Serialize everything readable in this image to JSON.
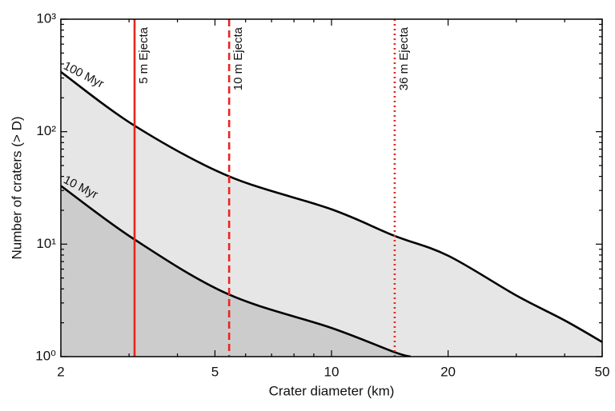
{
  "chart_data": {
    "type": "line",
    "xlabel": "Crater diameter (km)",
    "ylabel": "Number of craters (> D)",
    "xscale": "log",
    "yscale": "log",
    "xlim": [
      2,
      50
    ],
    "ylim": [
      1,
      1000
    ],
    "xticks": [
      2,
      5,
      10,
      20,
      50
    ],
    "xminorticks": [
      3,
      4,
      6,
      7,
      8,
      9,
      30,
      40
    ],
    "yticks": [
      {
        "value": 1,
        "label": "10⁰"
      },
      {
        "value": 10,
        "label": "10¹"
      },
      {
        "value": 100,
        "label": "10²"
      },
      {
        "value": 1000,
        "label": "10³"
      }
    ],
    "yminorticks": [
      2,
      3,
      4,
      5,
      6,
      7,
      8,
      9,
      20,
      30,
      40,
      50,
      60,
      70,
      80,
      90,
      200,
      300,
      400,
      500,
      600,
      700,
      800,
      900
    ],
    "series": [
      {
        "name": "100 Myr",
        "color": "#000000",
        "fill": "#e6e6e6",
        "x": [
          2,
          3.1,
          5.4,
          10,
          14.5,
          20,
          30,
          40,
          50
        ],
        "values": [
          340,
          113,
          40.5,
          20.4,
          11.9,
          7.9,
          3.5,
          2.1,
          1.35
        ]
      },
      {
        "name": "10 Myr",
        "color": "#000000",
        "fill": "#cccccc",
        "x": [
          2,
          3.1,
          5.4,
          10,
          14.5,
          16
        ],
        "values": [
          33,
          11,
          3.6,
          1.8,
          1.1,
          1
        ]
      }
    ],
    "vlines": [
      {
        "x": 3.1,
        "label": "5 m Ejecta",
        "color": "#e8261e",
        "style": "solid"
      },
      {
        "x": 5.44,
        "label": "10 m Ejecta",
        "color": "#e8261e",
        "style": "dashed"
      },
      {
        "x": 14.56,
        "label": "36 m Ejecta",
        "color": "#e8261e",
        "style": "dotted"
      }
    ]
  }
}
